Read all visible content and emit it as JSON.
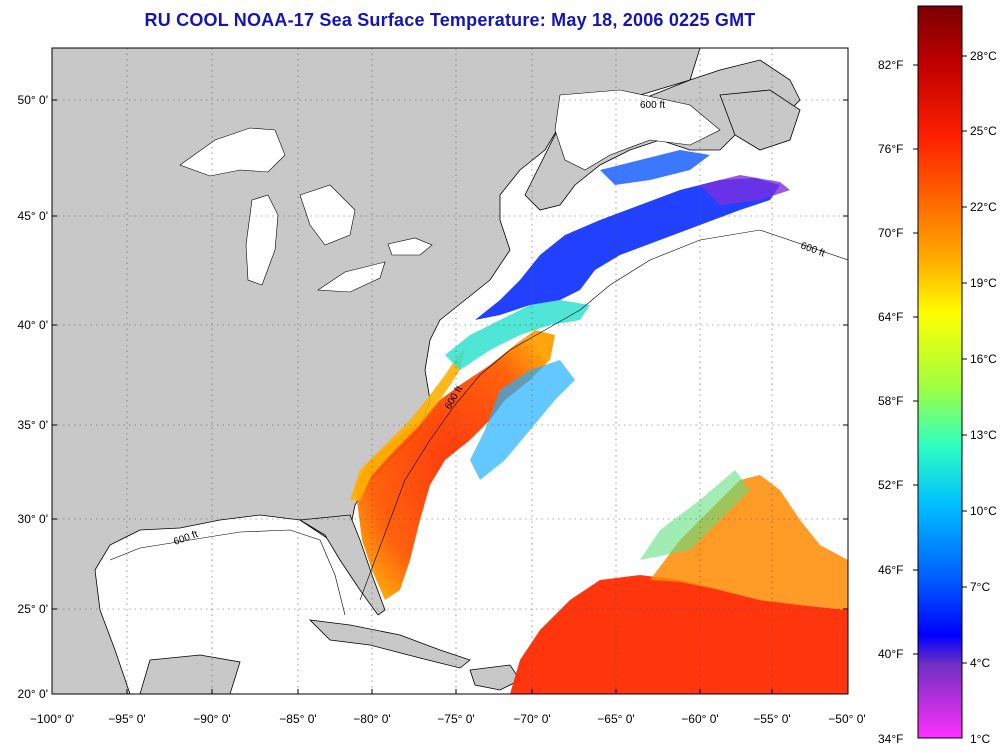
{
  "title": "RU COOL  NOAA-17  Sea Surface Temperature:  May 18, 2006 0225 GMT",
  "map": {
    "lat_labels": [
      "50° 0'",
      "45° 0'",
      "40° 0'",
      "35° 0'",
      "30° 0'",
      "25° 0'",
      "20° 0'"
    ],
    "lon_labels": [
      "−100° 0'",
      "−95° 0'",
      "−90° 0'",
      "−85° 0'",
      "−80° 0'",
      "−75° 0'",
      "−70° 0'",
      "−65° 0'",
      "−60° 0'",
      "−55° 0'",
      "−50° 0'"
    ],
    "depth_label": "600 ft",
    "colors": {
      "land": "#c8c8c8",
      "no_data": "#ffffff",
      "title": "#1515b5"
    }
  },
  "colorbar": {
    "fahrenheit_labels": [
      "82°F",
      "76°F",
      "70°F",
      "64°F",
      "58°F",
      "52°F",
      "46°F",
      "40°F",
      "34°F"
    ],
    "celsius_labels": [
      "28°C",
      "25°C",
      "22°C",
      "19°C",
      "16°C",
      "13°C",
      "10°C",
      "7°C",
      "4°C",
      "1°C"
    ],
    "gradient": [
      "#7a0000",
      "#c00000",
      "#ff2000",
      "#ff6a00",
      "#ffb000",
      "#ffff00",
      "#a0ff40",
      "#30ffc0",
      "#00c0ff",
      "#0060ff",
      "#0000ff",
      "#7030c0",
      "#ff30ff"
    ]
  }
}
